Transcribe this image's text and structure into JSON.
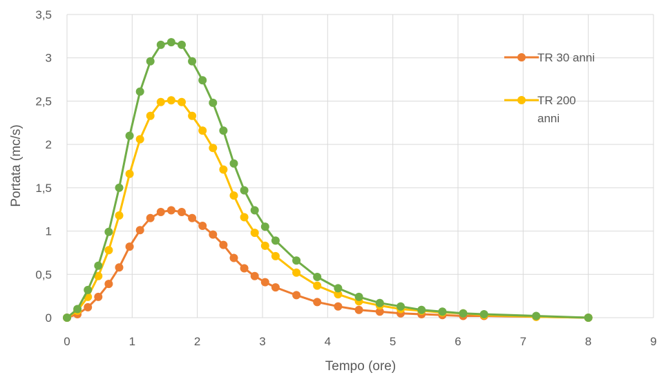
{
  "chart_data": {
    "type": "line",
    "title": "",
    "xlabel": "Tempo (ore)",
    "ylabel": "Portata (mc/s)",
    "xlim": [
      0,
      9
    ],
    "ylim": [
      0,
      3.5
    ],
    "xticks": [
      0,
      1,
      2,
      3,
      4,
      5,
      6,
      7,
      8,
      9
    ],
    "xtick_labels": [
      "0",
      "1",
      "2",
      "3",
      "4",
      "5",
      "6",
      "7",
      "8",
      "9"
    ],
    "yticks": [
      0,
      0.5,
      1,
      1.5,
      2,
      2.5,
      3,
      3.5
    ],
    "ytick_labels": [
      "0",
      "0,5",
      "1",
      "1,5",
      "2",
      "2,5",
      "3",
      "3,5"
    ],
    "grid": true,
    "legend_position": "right",
    "x": [
      0,
      0.16,
      0.32,
      0.48,
      0.64,
      0.8,
      0.96,
      1.12,
      1.28,
      1.44,
      1.6,
      1.76,
      1.92,
      2.08,
      2.24,
      2.4,
      2.56,
      2.72,
      2.88,
      3.04,
      3.2,
      3.52,
      3.84,
      4.16,
      4.48,
      4.8,
      5.12,
      5.44,
      5.76,
      6.08,
      6.4,
      7.2,
      8.0
    ],
    "series": [
      {
        "name": "TR 30 anni",
        "color": "#ED7D31",
        "values": [
          0,
          0.04,
          0.12,
          0.24,
          0.39,
          0.58,
          0.82,
          1.01,
          1.15,
          1.22,
          1.24,
          1.22,
          1.15,
          1.06,
          0.96,
          0.84,
          0.69,
          0.57,
          0.48,
          0.41,
          0.35,
          0.26,
          0.18,
          0.13,
          0.09,
          0.07,
          0.05,
          0.04,
          0.03,
          0.02,
          0.02,
          0.01,
          0
        ]
      },
      {
        "name": "TR 200 anni",
        "color": "#FFC000",
        "values": [
          0,
          0.08,
          0.24,
          0.48,
          0.78,
          1.18,
          1.66,
          2.06,
          2.33,
          2.49,
          2.51,
          2.49,
          2.33,
          2.16,
          1.96,
          1.71,
          1.41,
          1.16,
          0.98,
          0.83,
          0.71,
          0.52,
          0.37,
          0.27,
          0.19,
          0.14,
          0.1,
          0.08,
          0.06,
          0.05,
          0.03,
          0.01,
          0
        ]
      },
      {
        "name": "",
        "color": "#70AD47",
        "values": [
          0,
          0.1,
          0.32,
          0.6,
          0.99,
          1.5,
          2.1,
          2.61,
          2.96,
          3.15,
          3.18,
          3.15,
          2.96,
          2.74,
          2.48,
          2.16,
          1.78,
          1.47,
          1.24,
          1.05,
          0.89,
          0.66,
          0.47,
          0.34,
          0.24,
          0.17,
          0.13,
          0.09,
          0.07,
          0.05,
          0.04,
          0.02,
          0
        ]
      }
    ]
  },
  "legend": {
    "item0_label": "TR 30 anni",
    "item1_line1": "TR 200",
    "item1_line2": "anni"
  }
}
